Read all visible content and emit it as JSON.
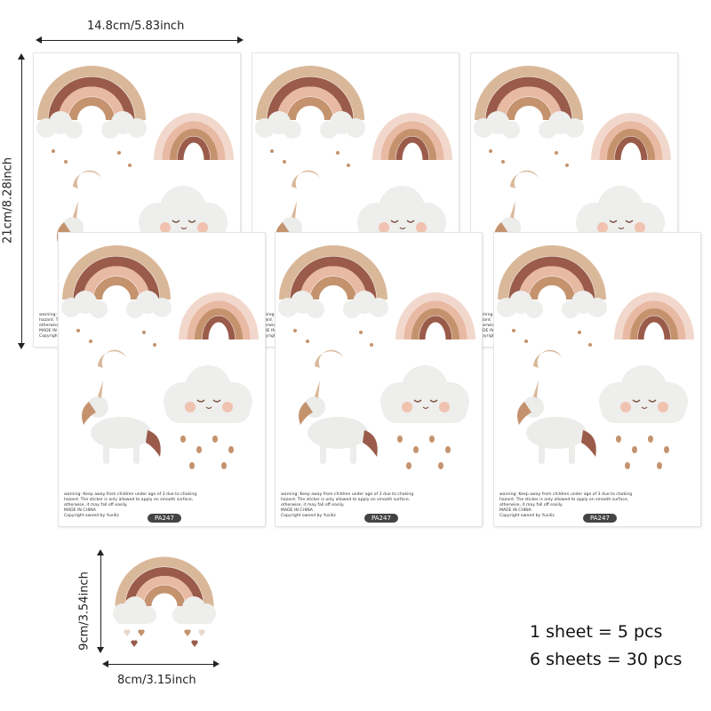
{
  "dimensions": {
    "sheet_width": "14.8cm/5.83inch",
    "sheet_height": "21cm/8.28inch",
    "sticker_height": "9cm/3.54inch",
    "sticker_width": "8cm/3.15inch"
  },
  "sheet": {
    "warning_lines": [
      "warning: Keep away from children under age of 3 due to choking",
      "hazard. The sticker is only allowed to apply on smooth surface,",
      "otherwise, it may fall off easily.",
      "MADE IN CHINA",
      "Copyright owned by Yuxiliz"
    ],
    "code": "PA247"
  },
  "summary": {
    "line1": "1 sheet = 5 pcs",
    "line2": "6 sheets = 30 pcs"
  },
  "colors": {
    "rainbow_outer": "#d9b89a",
    "rainbow_2": "#9a5b4a",
    "rainbow_3": "#e8b9a3",
    "rainbow_inner": "#c4936e",
    "cloud": "#eeeeec",
    "cheek": "#f0c2b0"
  }
}
